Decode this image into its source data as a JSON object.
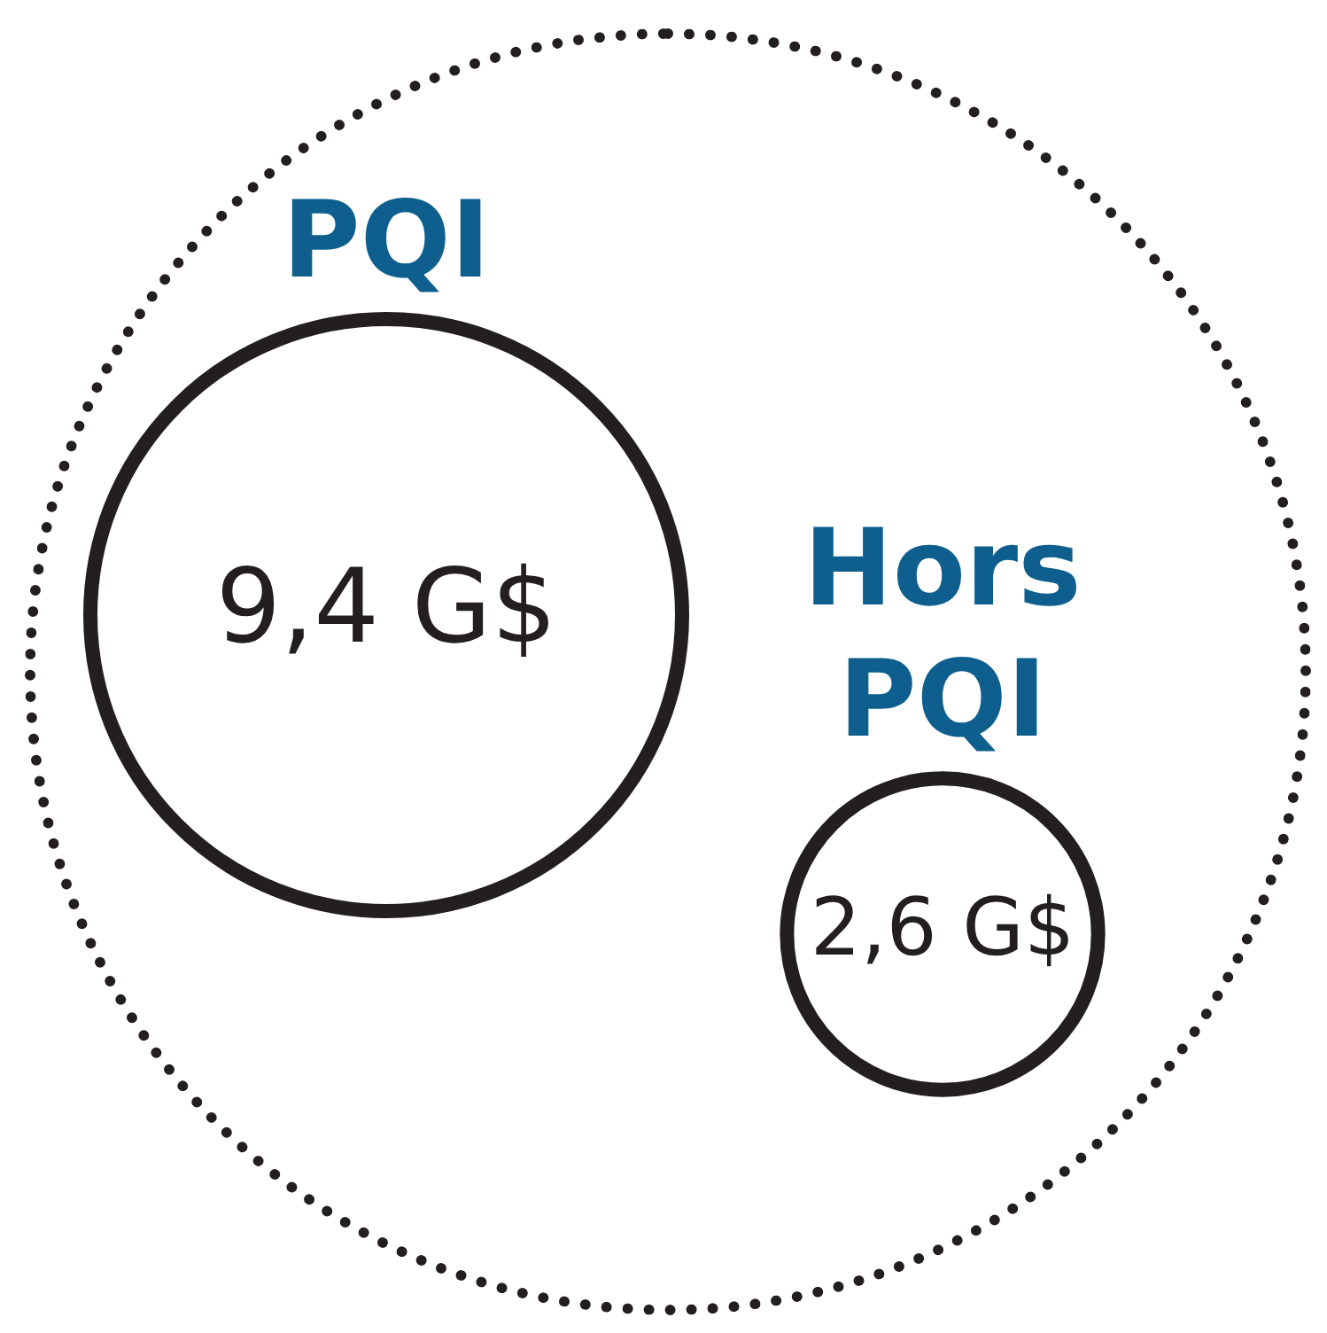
{
  "chart_data": {
    "type": "other",
    "categories": [
      "PQI",
      "Hors PQI"
    ],
    "values": [
      9.4,
      2.6
    ],
    "value_labels": [
      "9,4 G$",
      "2,6 G$"
    ],
    "colors": [
      "#231f20",
      "#231f20"
    ]
  }
}
